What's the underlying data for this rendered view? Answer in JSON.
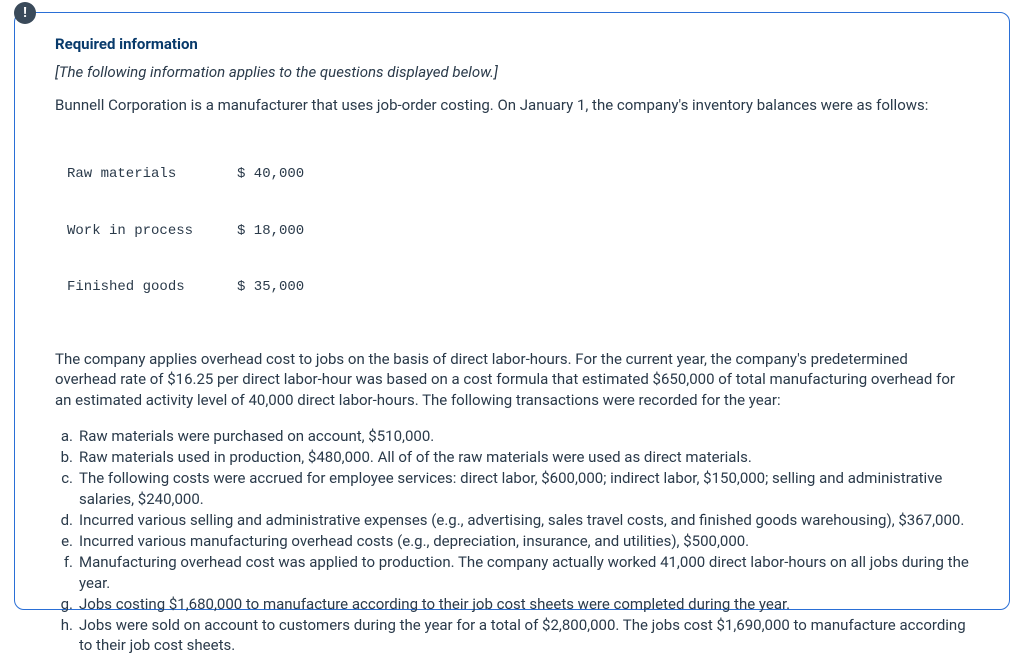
{
  "badge_symbol": "!",
  "header": {
    "required_label": "Required information",
    "applies_text": "[The following information applies to the questions displayed below.]"
  },
  "intro_paragraph": "Bunnell Corporation is a manufacturer that uses job-order costing. On January 1, the company's inventory balances were as follows:",
  "inventory": {
    "rows": [
      {
        "label": "Raw materials",
        "amount": "$ 40,000"
      },
      {
        "label": "Work in process",
        "amount": "$ 18,000"
      },
      {
        "label": "Finished goods",
        "amount": "$ 35,000"
      }
    ]
  },
  "overhead_paragraph": "The company applies overhead cost to jobs on the basis of direct labor-hours. For the current year, the company's predetermined overhead rate of $16.25 per direct labor-hour was based on a cost formula that estimated $650,000 of total manufacturing overhead for an estimated activity level of 40,000 direct labor-hours. The following transactions were recorded for the year:",
  "transactions": [
    {
      "letter": "a.",
      "text": "Raw materials were purchased on account, $510,000."
    },
    {
      "letter": "b.",
      "text": "Raw materials used in production, $480,000. All of of the raw materials were used as direct materials."
    },
    {
      "letter": "c.",
      "text": "The following costs were accrued for employee services: direct labor, $600,000; indirect labor, $150,000; selling and administrative salaries, $240,000."
    },
    {
      "letter": "d.",
      "text": "Incurred various selling and administrative expenses (e.g., advertising, sales travel costs, and finished goods warehousing), $367,000."
    },
    {
      "letter": "e.",
      "text": "Incurred various manufacturing overhead costs (e.g., depreciation, insurance, and utilities), $500,000."
    },
    {
      "letter": "f.",
      "text": "Manufacturing overhead cost was applied to production. The company actually worked 41,000 direct labor-hours on all jobs during the year."
    },
    {
      "letter": "g.",
      "text": "Jobs costing $1,680,000 to manufacture according to their job cost sheets were completed during the year."
    },
    {
      "letter": "h.",
      "text": "Jobs were sold on account to customers during the year for a total of $2,800,000. The jobs cost $1,690,000 to manufacture according to their job cost sheets."
    }
  ],
  "colors": {
    "border": "#2a6fd6",
    "title": "#083a6b",
    "text": "#2a3a4a",
    "badge_bg": "#3a4a5a"
  }
}
